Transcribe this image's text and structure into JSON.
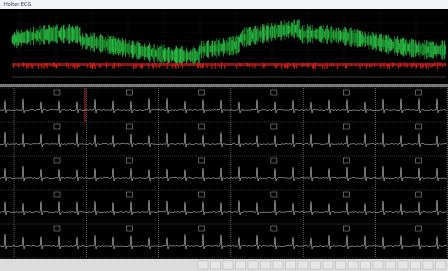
{
  "window": {
    "title": "Holter ECG"
  }
}
